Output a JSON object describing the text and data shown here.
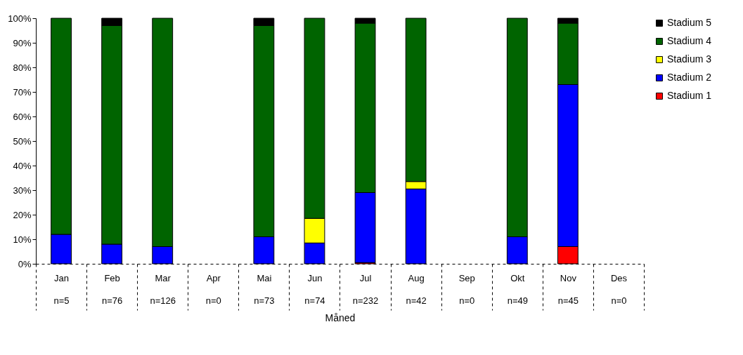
{
  "chart_data": {
    "type": "bar",
    "stacked": true,
    "xlabel": "Måned",
    "categories": [
      "Jan\nn=5",
      "Feb\nn=76",
      "Mar\nn=126",
      "Apr\nn=0",
      "Mai\nn=73",
      "Jun\nn=74",
      "Jul\nn=232",
      "Aug\nn=42",
      "Sep\nn=0",
      "Okt\nn=49",
      "Nov\nn=45",
      "Des\nn=0"
    ],
    "series": [
      {
        "name": "Stadium 1",
        "color": "#ff0000",
        "values": [
          null,
          null,
          null,
          null,
          null,
          null,
          0.5,
          null,
          null,
          null,
          7,
          null
        ]
      },
      {
        "name": "Stadium 2",
        "color": "#0000ff",
        "values": [
          12,
          8,
          7,
          null,
          11,
          8.5,
          28.5,
          30.5,
          null,
          11,
          66,
          null
        ]
      },
      {
        "name": "Stadium 3",
        "color": "#ffff00",
        "values": [
          null,
          null,
          null,
          null,
          null,
          10,
          null,
          3,
          null,
          null,
          null,
          null
        ]
      },
      {
        "name": "Stadium 4",
        "color": "#006400",
        "values": [
          88,
          89,
          93,
          null,
          86,
          81.5,
          69,
          66.5,
          null,
          89,
          25,
          null
        ]
      },
      {
        "name": "Stadium 5",
        "color": "#000000",
        "values": [
          null,
          3,
          null,
          null,
          3,
          null,
          2,
          null,
          null,
          null,
          2,
          null
        ]
      }
    ],
    "ylim": [
      0,
      100
    ],
    "yticks": [
      {
        "value": 0,
        "label": "0%"
      },
      {
        "value": 10,
        "label": "10%"
      },
      {
        "value": 20,
        "label": "20%"
      },
      {
        "value": 30,
        "label": "30%"
      },
      {
        "value": 40,
        "label": "40%"
      },
      {
        "value": 50,
        "label": "50%"
      },
      {
        "value": 60,
        "label": "60%"
      },
      {
        "value": 70,
        "label": "70%"
      },
      {
        "value": 80,
        "label": "80%"
      },
      {
        "value": 90,
        "label": "90%"
      },
      {
        "value": 100,
        "label": "100%"
      }
    ],
    "grid": false,
    "legend": "right"
  }
}
